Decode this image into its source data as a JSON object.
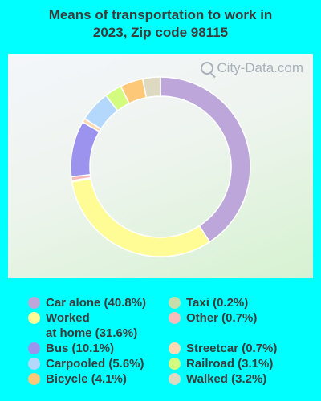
{
  "chart_data": {
    "type": "pie",
    "variant": "donut",
    "title": "Means of transportation to work in 2023, Zip code 98115",
    "title_lines": [
      "Means of transportation to work in",
      "2023, Zip code 98115"
    ],
    "watermark": "City-Data.com",
    "slices": [
      {
        "label": "Car alone",
        "value": 40.8,
        "color": "#bca6da"
      },
      {
        "label": "Worked at home",
        "value": 31.6,
        "color": "#fffb95"
      },
      {
        "label": "Taxi",
        "value": 0.2,
        "color": "#c9ddaa"
      },
      {
        "label": "Other",
        "value": 0.7,
        "color": "#f6bcbc"
      },
      {
        "label": "Bus",
        "value": 10.1,
        "color": "#9b93ee"
      },
      {
        "label": "Streetcar",
        "value": 0.7,
        "color": "#fcd9b0"
      },
      {
        "label": "Carpooled",
        "value": 5.6,
        "color": "#b3d8fb"
      },
      {
        "label": "Railroad",
        "value": 3.1,
        "color": "#d2fb7f"
      },
      {
        "label": "Bicycle",
        "value": 4.1,
        "color": "#fdc877"
      },
      {
        "label": "Walked",
        "value": 3.2,
        "color": "#dedac2"
      }
    ],
    "legend": [
      {
        "label": "Car alone (40.8%)",
        "color": "#bca6da"
      },
      {
        "label": "Worked\nat home (31.6%)",
        "color": "#fffb95"
      },
      {
        "label": "Bus (10.1%)",
        "color": "#9b93ee"
      },
      {
        "label": "Carpooled (5.6%)",
        "color": "#b3d8fb"
      },
      {
        "label": "Bicycle (4.1%)",
        "color": "#fdc877"
      },
      {
        "label": "Taxi (0.2%)",
        "color": "#c9ddaa"
      },
      {
        "label": "Other (0.7%)",
        "color": "#f6bcbc"
      },
      {
        "label": "Streetcar (0.7%)",
        "color": "#fcd9b0"
      },
      {
        "label": "Railroad (3.1%)",
        "color": "#d2fb7f"
      },
      {
        "label": "Walked (3.2%)",
        "color": "#dedac2"
      }
    ],
    "legend_placement": "bottom",
    "background_color": "#00ffff"
  }
}
